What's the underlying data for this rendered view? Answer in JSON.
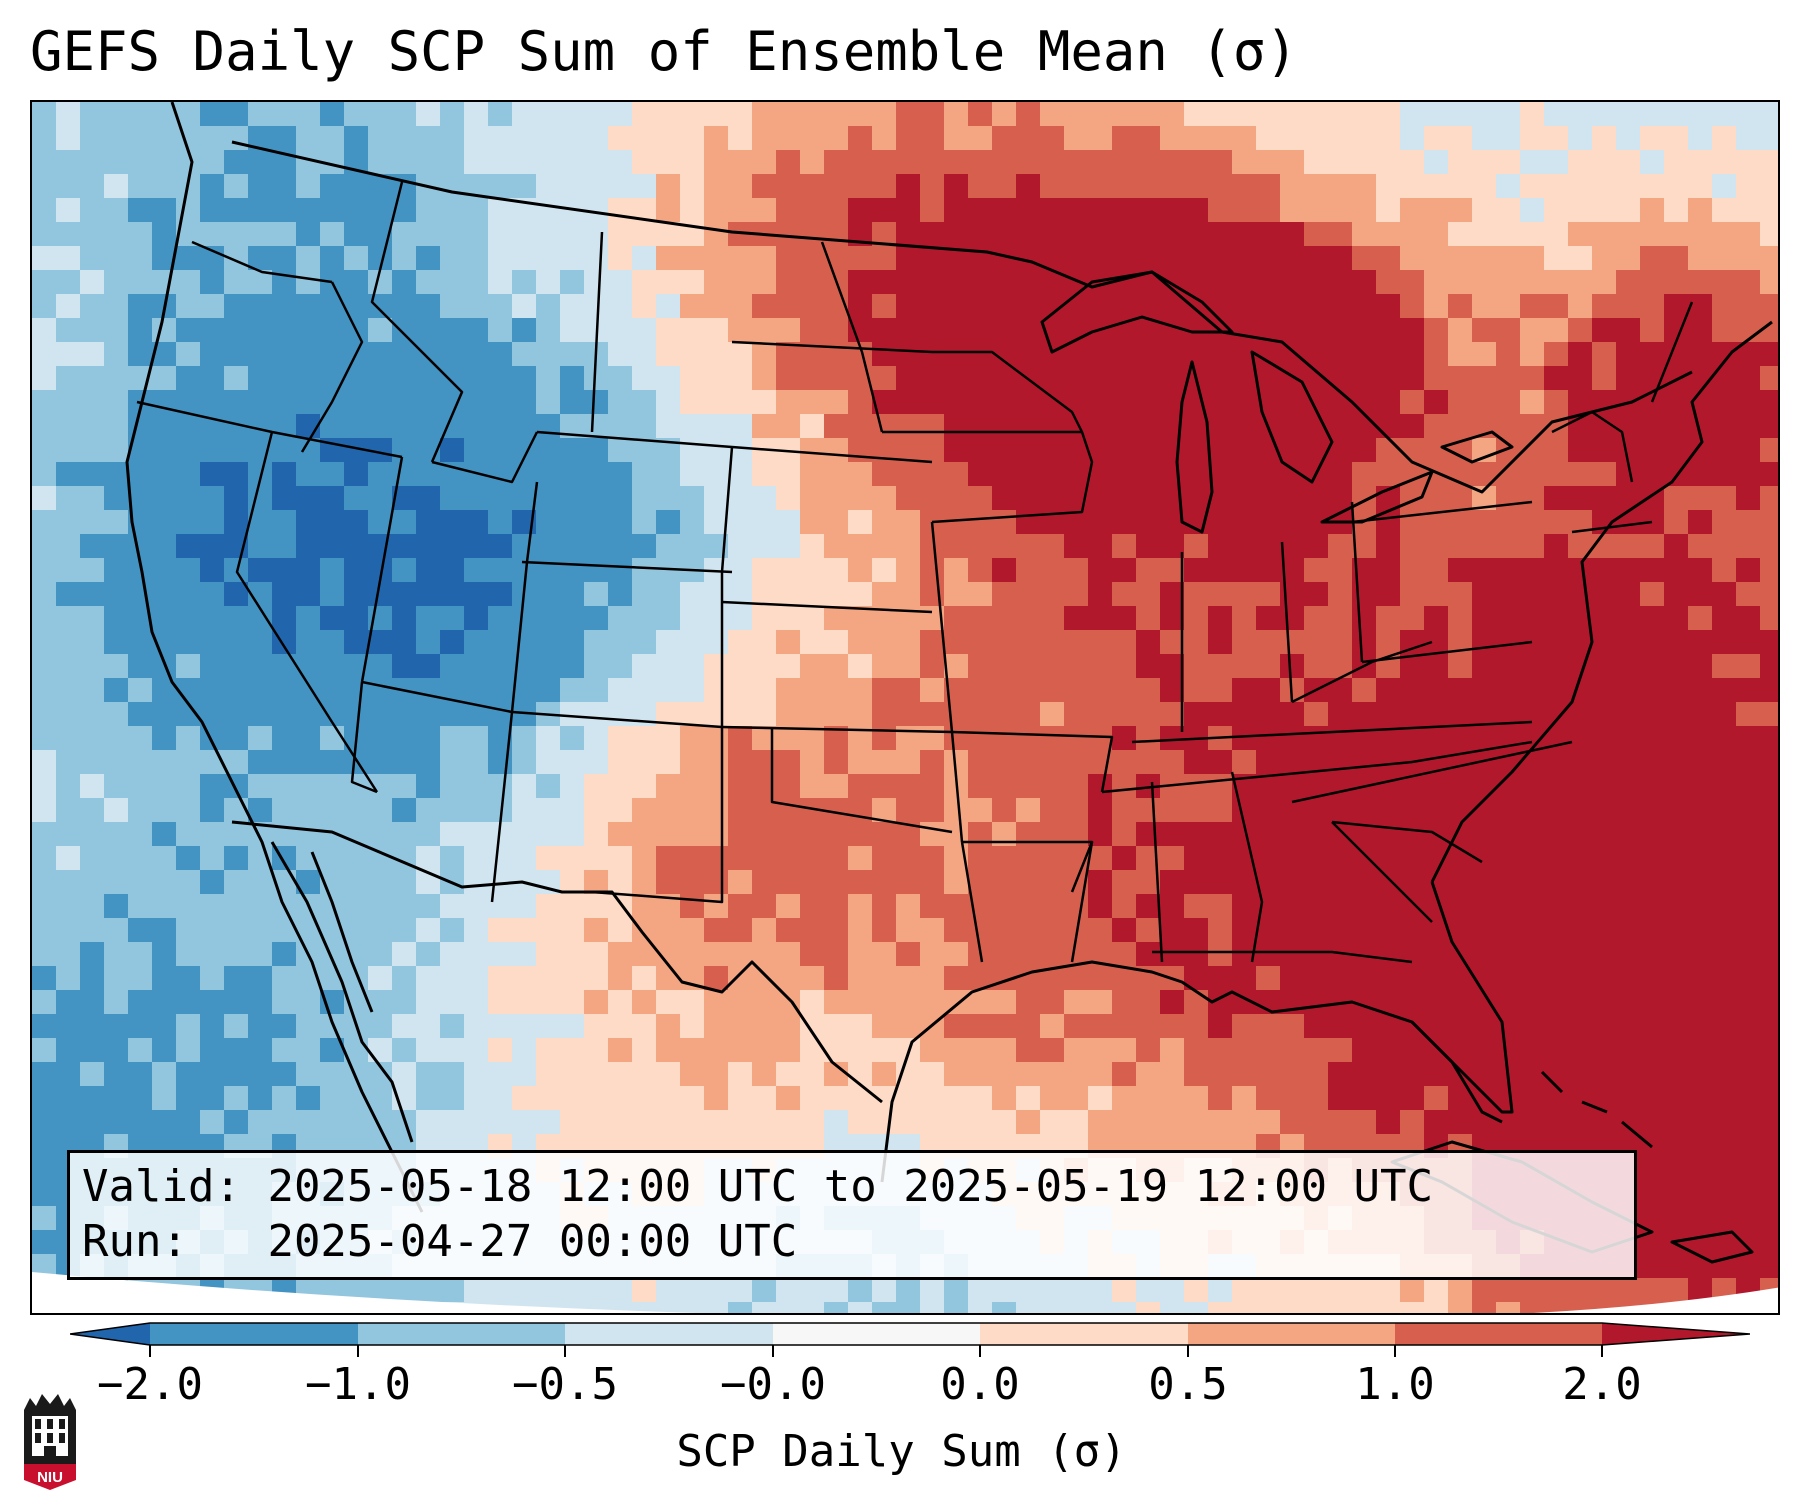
{
  "title": "GEFS Daily SCP Sum of Ensemble Mean (σ)",
  "info": {
    "valid_label": "Valid:",
    "valid_value": "2025-05-18 12:00 UTC to 2025-05-19 12:00 UTC",
    "run_label": "Run:",
    "run_value": "2025-04-27 00:00 UTC"
  },
  "colorbar": {
    "label": "SCP Daily Sum (σ)",
    "ticks": [
      "−2.0",
      "−1.0",
      "−0.5",
      "−0.0",
      "0.0",
      "0.5",
      "1.0",
      "2.0"
    ],
    "colors": [
      "#2166ac",
      "#4393c3",
      "#92c5de",
      "#d1e5f0",
      "#f7f7f7",
      "#fddbc7",
      "#f4a582",
      "#d6604d",
      "#b2182b"
    ],
    "extend": "both"
  },
  "logo": {
    "text": "NIU",
    "icon": "niu-seal-icon"
  },
  "map": {
    "region": "CONUS",
    "projection": "lambert conformal"
  }
}
